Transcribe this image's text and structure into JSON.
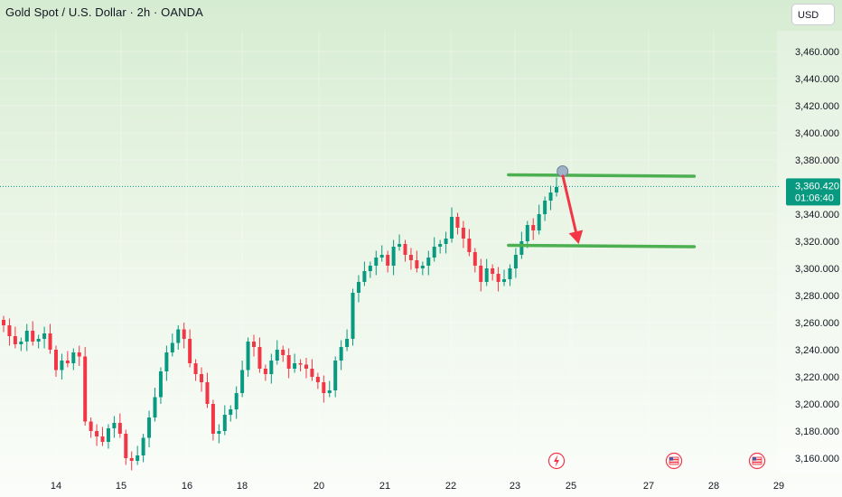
{
  "header": {
    "title": "Gold Spot / U.S. Dollar · 2h · OANDA",
    "currency_button": "USD"
  },
  "price_tag": {
    "price": "3,360.420",
    "countdown": "01:06:40",
    "color": "#089981"
  },
  "colors": {
    "up": "#089981",
    "down": "#f23645",
    "drawing_line": "#4caf50",
    "arrow": "#f23645"
  },
  "event_icons": [
    {
      "name": "lightning-event-icon",
      "x": "24.6"
    },
    {
      "name": "us-flag-event-icon",
      "x": "27.4"
    },
    {
      "name": "us-flag-event-icon",
      "x": "28.6"
    }
  ],
  "chart_data": {
    "type": "candlestick",
    "title": "Gold Spot / U.S. Dollar · 2h · OANDA",
    "xlabel": "",
    "ylabel": "",
    "ylim": [
      3150,
      3480
    ],
    "y_ticks": [
      "3,460.000",
      "3,440.000",
      "3,420.000",
      "3,400.000",
      "3,380.000",
      "3,360.000",
      "3,340.000",
      "3,320.000",
      "3,300.000",
      "3,280.000",
      "3,260.000",
      "3,240.000",
      "3,220.000",
      "3,200.000",
      "3,180.000",
      "3,160.000"
    ],
    "x_ticks": [
      {
        "label": "14",
        "x": 14
      },
      {
        "label": "15",
        "x": 15
      },
      {
        "label": "16",
        "x": 16
      },
      {
        "label": "18",
        "x": 17
      },
      {
        "label": "20",
        "x": 18
      },
      {
        "label": "21",
        "x": 19
      },
      {
        "label": "22",
        "x": 20
      },
      {
        "label": "23",
        "x": 21
      },
      {
        "label": "25",
        "x": 22
      },
      {
        "label": "27",
        "x": 23
      },
      {
        "label": "28",
        "x": 24
      },
      {
        "label": "29",
        "x": 25
      }
    ],
    "current_price": 3360.42,
    "candles_close": [
      3258,
      3250,
      3244,
      3246,
      3254,
      3246,
      3248,
      3252,
      3240,
      3225,
      3232,
      3230,
      3238,
      3235,
      3187,
      3180,
      3176,
      3172,
      3182,
      3186,
      3178,
      3160,
      3158,
      3162,
      3175,
      3190,
      3205,
      3224,
      3238,
      3245,
      3255,
      3248,
      3230,
      3222,
      3216,
      3200,
      3178,
      3180,
      3192,
      3196,
      3208,
      3225,
      3246,
      3242,
      3226,
      3222,
      3232,
      3240,
      3236,
      3226,
      3230,
      3229,
      3226,
      3220,
      3216,
      3208,
      3210,
      3232,
      3242,
      3248,
      3282,
      3290,
      3298,
      3302,
      3308,
      3310,
      3302,
      3316,
      3318,
      3310,
      3306,
      3300,
      3302,
      3308,
      3316,
      3318,
      3322,
      3338,
      3330,
      3322,
      3312,
      3302,
      3290,
      3300,
      3296,
      3290,
      3292,
      3300,
      3310,
      3320,
      3332,
      3328,
      3340,
      3350,
      3356,
      3360
    ],
    "trend_lines": [
      {
        "label": "resistance",
        "from": {
          "x": 20.9,
          "y": 3369
        },
        "to": {
          "x": 23.7,
          "y": 3368
        }
      },
      {
        "label": "support",
        "from": {
          "x": 20.9,
          "y": 3317
        },
        "to": {
          "x": 23.7,
          "y": 3316
        }
      }
    ],
    "arrow": {
      "from": {
        "x": 21.85,
        "y": 3369
      },
      "to": {
        "x": 22.1,
        "y": 3318
      }
    }
  }
}
